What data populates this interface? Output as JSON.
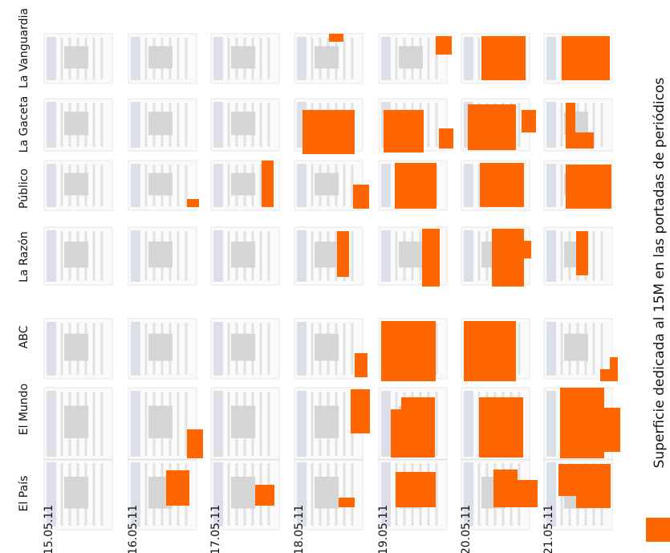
{
  "legend": {
    "text": "Superficie dedicada al 15M en las portadas de periódicos"
  },
  "newspapers": [
    "El País",
    "El Mundo",
    "ABC",
    "La Razón",
    "Público",
    "La Gaceta",
    "La Vanguardia"
  ],
  "dates": [
    "15.05.11",
    "16.05.11",
    "17.05.11",
    "18.05.11",
    "19.05.11",
    "20.05.11",
    "21.05.11"
  ]
}
